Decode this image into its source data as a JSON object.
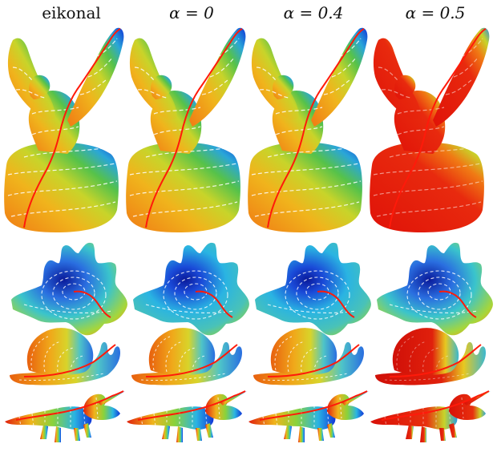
{
  "columns": [
    {
      "label": "eikonal",
      "math": false
    },
    {
      "label": "α = 0",
      "math": true
    },
    {
      "label": "α = 0.4",
      "math": true
    },
    {
      "label": "α = 0.5",
      "math": true
    }
  ],
  "rows": [
    "eagle",
    "shell",
    "snail",
    "triceratops"
  ],
  "palette": {
    "red": "#e8180c",
    "orange": "#f08a1a",
    "yellow": "#e9d81a",
    "green": "#7fcf3a",
    "cyan": "#33c4e0",
    "blue": "#1836d6",
    "path": "#ff0000",
    "isoline": "#ffffff"
  }
}
